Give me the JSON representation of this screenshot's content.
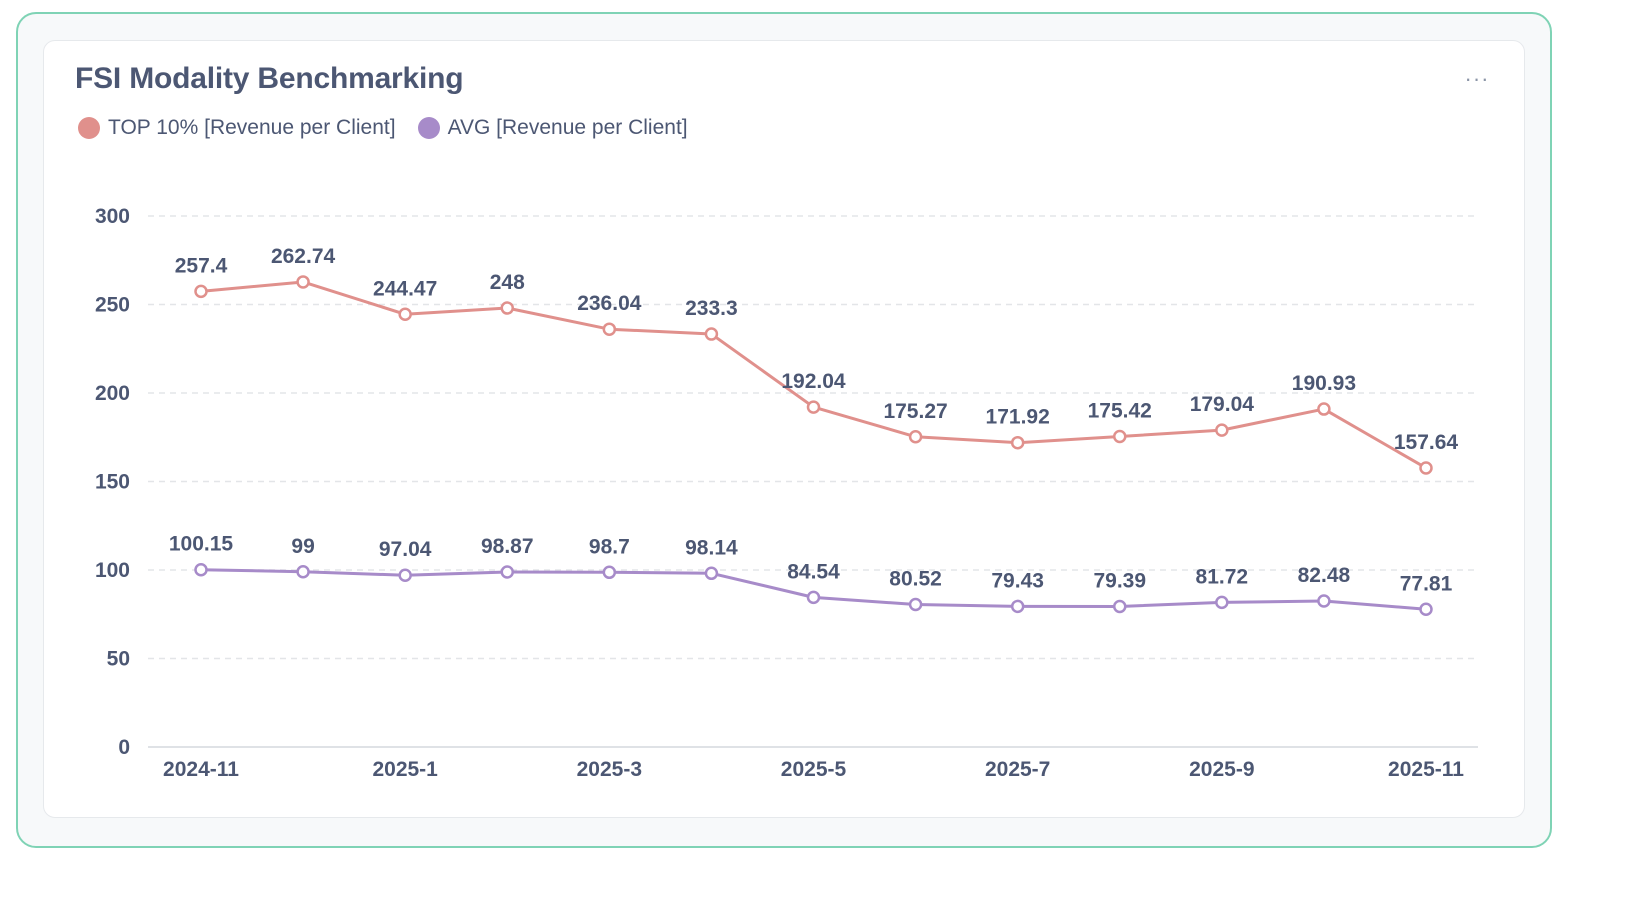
{
  "card": {
    "title": "FSI Modality Benchmarking",
    "menu_label": "···"
  },
  "colors": {
    "top10": "#e0908c",
    "avg": "#a78bc9",
    "grid": "#e3e5e8",
    "axis": "#dfe2e6",
    "text": "#4c5773"
  },
  "legend": [
    {
      "label": "TOP 10% [Revenue per Client]",
      "color": "#e0908c"
    },
    {
      "label": "AVG [Revenue per Client]",
      "color": "#a78bc9"
    }
  ],
  "chart_data": {
    "type": "line",
    "title": "FSI Modality Benchmarking",
    "xlabel": "",
    "ylabel": "",
    "ylim": [
      0,
      300
    ],
    "yticks": [
      0,
      50,
      100,
      150,
      200,
      250,
      300
    ],
    "grid": true,
    "legend_position": "top-left",
    "x": [
      "2024-11",
      "2024-12",
      "2025-1",
      "2025-2",
      "2025-3",
      "2025-4",
      "2025-5",
      "2025-6",
      "2025-7",
      "2025-8",
      "2025-9",
      "2025-10",
      "2025-11"
    ],
    "x_tick_labels": [
      "2024-11",
      "",
      "2025-1",
      "",
      "2025-3",
      "",
      "2025-5",
      "",
      "2025-7",
      "",
      "2025-9",
      "",
      "2025-11"
    ],
    "series": [
      {
        "name": "TOP 10% [Revenue per Client]",
        "color": "#e0908c",
        "values": [
          257.4,
          262.74,
          244.47,
          248,
          236.04,
          233.3,
          192.04,
          175.27,
          171.92,
          175.42,
          179.04,
          190.93,
          157.64
        ],
        "labels": [
          "257.4",
          "262.74",
          "244.47",
          "248",
          "236.04",
          "233.3",
          "192.04",
          "175.27",
          "171.92",
          "175.42",
          "179.04",
          "190.93",
          "157.64"
        ]
      },
      {
        "name": "AVG [Revenue per Client]",
        "color": "#a78bc9",
        "values": [
          100.15,
          99,
          97.04,
          98.87,
          98.7,
          98.14,
          84.54,
          80.52,
          79.43,
          79.39,
          81.72,
          82.48,
          77.81
        ],
        "labels": [
          "100.15",
          "99",
          "97.04",
          "98.87",
          "98.7",
          "98.14",
          "84.54",
          "80.52",
          "79.43",
          "79.39",
          "81.72",
          "82.48",
          "77.81"
        ]
      }
    ]
  }
}
